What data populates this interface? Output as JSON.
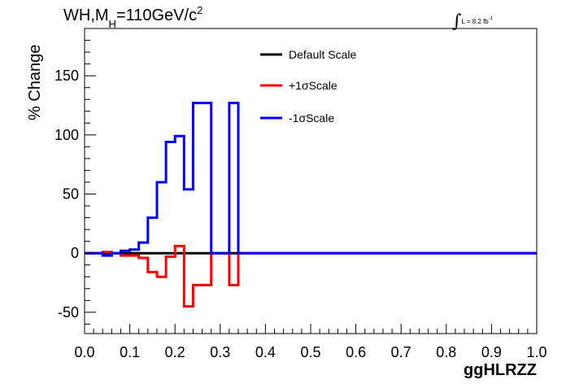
{
  "chart_data": {
    "type": "line",
    "title_parts": [
      "WH,M",
      "H",
      "=110GeV/c",
      "2"
    ],
    "lumi_parts": [
      "L = 8.2 fb",
      "-1"
    ],
    "xlabel": "ggHLRZZ",
    "ylabel": "% Change",
    "xlim": [
      0.0,
      1.0
    ],
    "ylim": [
      -68,
      190
    ],
    "x_ticks": [
      "0.0",
      "0.1",
      "0.2",
      "0.3",
      "0.4",
      "0.5",
      "0.6",
      "0.7",
      "0.8",
      "0.9",
      "1.0"
    ],
    "y_ticks": [
      "-50",
      "0",
      "50",
      "100",
      "150"
    ],
    "grid": false,
    "legend_position": "top-center",
    "bin_edges": [
      0.0,
      0.02,
      0.04,
      0.06,
      0.08,
      0.1,
      0.12,
      0.14,
      0.16,
      0.18,
      0.2,
      0.22,
      0.24,
      0.26,
      0.28,
      0.3,
      0.32,
      0.34,
      0.36,
      0.38,
      0.4,
      0.42,
      0.44,
      0.46,
      0.48,
      0.5,
      0.52,
      0.54,
      0.56,
      0.58,
      0.6,
      0.62,
      0.64,
      0.66,
      0.68,
      0.7,
      0.72,
      0.74,
      0.76,
      0.78,
      0.8,
      0.82,
      0.84,
      0.86,
      0.88,
      0.9,
      0.92,
      0.94,
      0.96,
      0.98,
      1.0
    ],
    "series": [
      {
        "name": "Default Scale",
        "color": "#000000",
        "values": [
          0,
          0,
          0,
          0,
          0,
          0,
          0,
          0,
          0,
          0,
          0,
          0,
          0,
          0,
          0,
          0,
          0,
          0,
          0,
          0,
          0,
          0,
          0,
          0,
          0,
          0,
          0,
          0,
          0,
          0,
          0,
          0,
          0,
          0,
          0,
          0,
          0,
          0,
          0,
          0,
          0,
          0,
          0,
          0,
          0,
          0,
          0,
          0,
          0,
          0
        ]
      },
      {
        "name": "+1σScale",
        "color": "#ff0000",
        "values": [
          0,
          0,
          1,
          0,
          -2,
          -2,
          -4,
          -16,
          -20,
          -3,
          6,
          -45,
          -27,
          -27,
          0,
          0,
          -27,
          0,
          0,
          0,
          0,
          0,
          0,
          0,
          0,
          0,
          0,
          0,
          0,
          0,
          0,
          0,
          0,
          0,
          0,
          0,
          0,
          0,
          0,
          0,
          0,
          0,
          0,
          0,
          0,
          0,
          0,
          0,
          0,
          0
        ]
      },
      {
        "name": "-1σScale",
        "color": "#0000ff",
        "values": [
          0,
          0,
          -2,
          0,
          2,
          3,
          9,
          30,
          60,
          94,
          99,
          54,
          127,
          127,
          0,
          0,
          127,
          0,
          0,
          0,
          0,
          0,
          0,
          0,
          0,
          0,
          0,
          0,
          0,
          0,
          0,
          0,
          0,
          0,
          0,
          0,
          0,
          0,
          0,
          0,
          0,
          0,
          0,
          0,
          0,
          0,
          0,
          0,
          0,
          0
        ]
      }
    ]
  }
}
